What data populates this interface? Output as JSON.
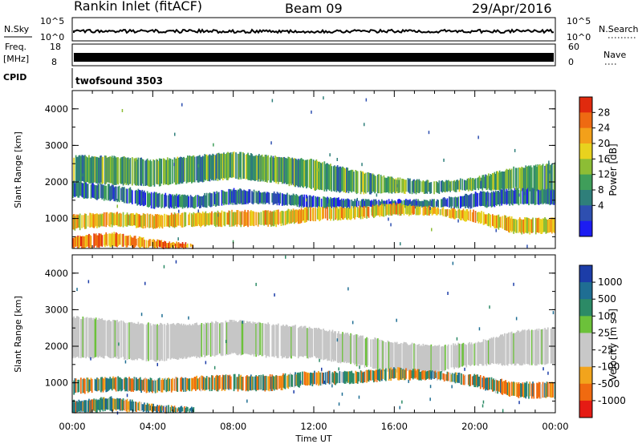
{
  "header": {
    "station": "Rankin Inlet (fitACF)",
    "beam": "Beam 09",
    "date": "29/Apr/2016"
  },
  "top_panels": {
    "nsky_label": "N.Sky",
    "nsky_ticks": [
      "10^5",
      "10^0"
    ],
    "nsearch_label": "N.Search",
    "nsearch_ticks": [
      "10^5",
      "10^0"
    ],
    "freq_label": "Freq.",
    "freq_unit": "[MHz]",
    "freq_ticks": [
      "18",
      "8"
    ],
    "nave_label": "Nave",
    "nave_ticks": [
      "60",
      "0"
    ],
    "cpid_label": "CPID",
    "cpid_value": "twofsound 3503"
  },
  "colors": {
    "power_scale": [
      "#1c1cf2",
      "#2e4fb0",
      "#2f7f7a",
      "#3f9e5a",
      "#8dbd35",
      "#e8d21e",
      "#f3a01a",
      "#ee6a12",
      "#e02a0e"
    ],
    "velocity_scale": [
      "#1c3da8",
      "#1f6e93",
      "#2c8a66",
      "#6cc13a",
      "#c8c8c8",
      "#c8c8c8",
      "#f2a41c",
      "#f06a10",
      "#e51b14"
    ],
    "ground_scatter": "#c6c6c6"
  },
  "chart_data": [
    {
      "type": "heatmap",
      "name": "power-panel",
      "ylabel": "Slant Range [km]",
      "yticks": [
        "4000",
        "3000",
        "2000",
        "1000"
      ],
      "ylim": [
        180,
        4500
      ],
      "x_range_hours": [
        0,
        24
      ],
      "xticks": [
        "00:00",
        "04:00",
        "08:00",
        "12:00",
        "16:00",
        "20:00",
        "00:00"
      ],
      "colorbar_label": "Power [dB]",
      "colorbar_ticks": [
        "28",
        "24",
        "20",
        "16",
        "12",
        "8",
        "4"
      ],
      "bands": [
        {
          "name": "upper",
          "points": [
            [
              0,
              2000,
              2700
            ],
            [
              2,
              1950,
              2700
            ],
            [
              4,
              1900,
              2600
            ],
            [
              6,
              2000,
              2700
            ],
            [
              8,
              2100,
              2800
            ],
            [
              10,
              2000,
              2700
            ],
            [
              12,
              1800,
              2600
            ],
            [
              14,
              1700,
              2300
            ],
            [
              16,
              1700,
              2100
            ],
            [
              18,
              1700,
              2000
            ],
            [
              20,
              1800,
              2100
            ],
            [
              22,
              1800,
              2400
            ],
            [
              24,
              1700,
              2500
            ]
          ],
          "level": 14
        },
        {
          "name": "middle",
          "points": [
            [
              0,
              1600,
              2000
            ],
            [
              2,
              1500,
              1900
            ],
            [
              4,
              1300,
              1700
            ],
            [
              6,
              1300,
              1600
            ],
            [
              8,
              1400,
              1800
            ],
            [
              10,
              1400,
              1700
            ],
            [
              12,
              1300,
              1600
            ],
            [
              14,
              1300,
              1500
            ],
            [
              16,
              1300,
              1500
            ],
            [
              18,
              1300,
              1500
            ],
            [
              20,
              1300,
              1700
            ],
            [
              22,
              1400,
              1800
            ],
            [
              24,
              1400,
              1800
            ]
          ],
          "level": 9
        },
        {
          "name": "lower",
          "points": [
            [
              0,
              700,
              1100
            ],
            [
              2,
              800,
              1150
            ],
            [
              4,
              750,
              1100
            ],
            [
              6,
              800,
              1150
            ],
            [
              8,
              800,
              1200
            ],
            [
              10,
              800,
              1200
            ],
            [
              12,
              950,
              1300
            ],
            [
              14,
              1000,
              1300
            ],
            [
              16,
              1100,
              1400
            ],
            [
              18,
              1100,
              1300
            ],
            [
              20,
              900,
              1200
            ],
            [
              22,
              600,
              1000
            ],
            [
              24,
              600,
              1000
            ]
          ],
          "level": 22
        },
        {
          "name": "near",
          "points": [
            [
              0,
              200,
              500
            ],
            [
              2,
              250,
              600
            ],
            [
              4,
              200,
              400
            ],
            [
              6,
              200,
              300
            ]
          ],
          "level": 26
        }
      ]
    },
    {
      "type": "heatmap",
      "name": "velocity-panel",
      "ylabel": "Slant Range [km]",
      "yticks": [
        "4000",
        "3000",
        "2000",
        "1000"
      ],
      "ylim": [
        180,
        4500
      ],
      "x_range_hours": [
        0,
        24
      ],
      "xticks": [
        "00:00",
        "04:00",
        "08:00",
        "12:00",
        "16:00",
        "20:00",
        "00:00"
      ],
      "xlabel": "Time UT",
      "colorbar_label": "Velocity [m s^-1]",
      "colorbar_ticks": [
        "1000",
        "500",
        "100",
        "25",
        "-25",
        "-100",
        "-500",
        "-1000"
      ],
      "bands": [
        {
          "name": "ground",
          "points": [
            [
              0,
              1700,
              2800
            ],
            [
              2,
              1700,
              2700
            ],
            [
              4,
              1600,
              2600
            ],
            [
              6,
              1700,
              2600
            ],
            [
              8,
              1800,
              2700
            ],
            [
              10,
              1700,
              2600
            ],
            [
              12,
              1700,
              2500
            ],
            [
              14,
              1500,
              2300
            ],
            [
              16,
              1300,
              2100
            ],
            [
              18,
              1300,
              2000
            ],
            [
              20,
              1500,
              2100
            ],
            [
              22,
              1500,
              2400
            ],
            [
              24,
              1500,
              2500
            ]
          ],
          "value": 0
        },
        {
          "name": "mixed",
          "points": [
            [
              0,
              700,
              1100
            ],
            [
              2,
              800,
              1150
            ],
            [
              4,
              750,
              1100
            ],
            [
              6,
              800,
              1150
            ],
            [
              8,
              800,
              1200
            ],
            [
              10,
              800,
              1200
            ],
            [
              12,
              950,
              1300
            ],
            [
              14,
              1000,
              1300
            ],
            [
              16,
              1100,
              1400
            ],
            [
              18,
              1100,
              1300
            ],
            [
              20,
              900,
              1200
            ],
            [
              22,
              600,
              1000
            ],
            [
              24,
              600,
              1000
            ]
          ],
          "value": -80
        },
        {
          "name": "near",
          "points": [
            [
              0,
              200,
              500
            ],
            [
              2,
              250,
              600
            ],
            [
              4,
              200,
              400
            ],
            [
              6,
              200,
              300
            ]
          ],
          "value": 60
        }
      ]
    }
  ]
}
